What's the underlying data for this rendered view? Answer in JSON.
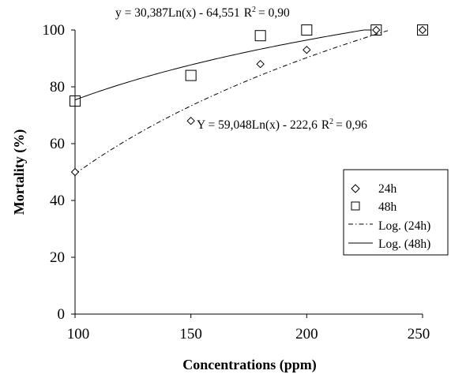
{
  "chart_data": {
    "type": "scatter",
    "xlabel": "Concentrations (ppm)",
    "ylabel": "Mortality (%)",
    "xlim": [
      100,
      250
    ],
    "ylim": [
      0,
      100
    ],
    "xticks": [
      100,
      150,
      200,
      250
    ],
    "yticks": [
      0,
      20,
      40,
      60,
      80,
      100
    ],
    "grid": false,
    "legend_position": "right",
    "series": [
      {
        "name": "24h",
        "marker": "diamond",
        "x": [
          100,
          150,
          180,
          200,
          230,
          250
        ],
        "y": [
          50,
          68,
          88,
          93,
          100,
          100
        ]
      },
      {
        "name": "48h",
        "marker": "square",
        "x": [
          100,
          150,
          180,
          200,
          230,
          250
        ],
        "y": [
          75,
          84,
          98,
          100,
          100,
          100
        ]
      }
    ],
    "trendlines": [
      {
        "name": "Log. (24h)",
        "style": "dash-dot",
        "equation": "Y = 59,048Ln(x) - 222,6",
        "r2_label": "R",
        "r2_value": "= 0,96",
        "a": 59.048,
        "b": -222.6,
        "x_range": [
          100,
          235
        ]
      },
      {
        "name": "Log. (48h)",
        "style": "solid",
        "equation": "y = 30,387Ln(x) - 64,551",
        "r2_label": "R",
        "r2_value": "= 0,90",
        "a": 30.387,
        "b": -64.551,
        "x_range": [
          100,
          228
        ]
      }
    ]
  }
}
